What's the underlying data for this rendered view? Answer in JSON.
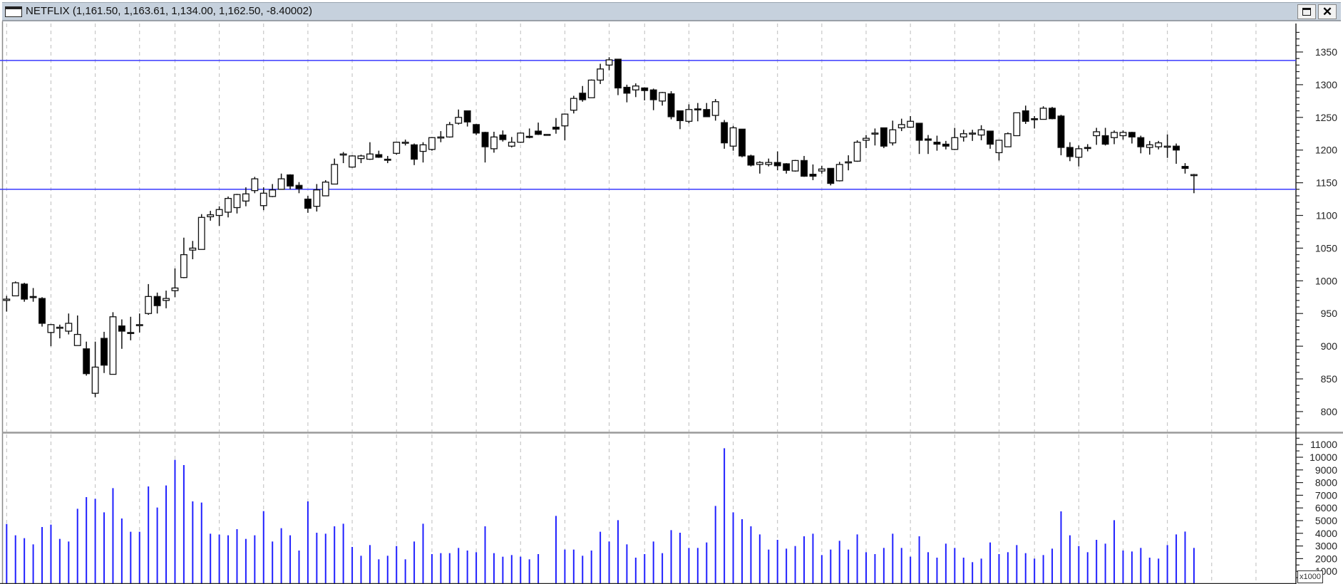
{
  "window": {
    "title": "NETFLIX (1,161.50, 1,163.61, 1,134.00, 1,162.50, -8.40002)",
    "maximize_icon": "maximize-icon",
    "close_icon": "close-icon",
    "close_label": "✕"
  },
  "colors": {
    "volume": "#2020ff",
    "horizontal_line": "#3a3aff",
    "candle_up_fill": "#ffffff",
    "candle_down_fill": "#000000",
    "grid": "#bdbdbd"
  },
  "chart_data": [
    {
      "type": "candlestick",
      "series_name": "NETFLIX",
      "ylim": [
        775,
        1385
      ],
      "yticks": [
        1350,
        1300,
        1250,
        1200,
        1150,
        1100,
        1050,
        1000,
        950,
        900,
        850,
        800
      ],
      "grid": "vertical dashed",
      "horizontal_lines": [
        1337,
        1140
      ],
      "ohlc": [
        [
          970,
          977,
          953,
          972
        ],
        [
          977,
          999,
          977,
          997
        ],
        [
          995,
          997,
          968,
          972
        ],
        [
          976,
          989,
          968,
          975
        ],
        [
          973,
          975,
          930,
          935
        ],
        [
          921,
          934,
          900,
          933
        ],
        [
          928,
          933,
          912,
          929
        ],
        [
          923,
          950,
          918,
          935
        ],
        [
          901,
          947,
          901,
          918
        ],
        [
          896,
          907,
          855,
          858
        ],
        [
          828,
          907,
          822,
          868
        ],
        [
          912,
          922,
          859,
          871
        ],
        [
          857,
          952,
          857,
          945
        ],
        [
          931,
          941,
          896,
          923
        ],
        [
          921,
          945,
          909,
          920
        ],
        [
          932,
          950,
          921,
          933
        ],
        [
          950,
          995,
          948,
          976
        ],
        [
          976,
          982,
          950,
          962
        ],
        [
          970,
          985,
          958,
          973
        ],
        [
          985,
          1019,
          975,
          989
        ],
        [
          1005,
          1066,
          1004,
          1040
        ],
        [
          1047,
          1061,
          1033,
          1050
        ],
        [
          1048,
          1102,
          1048,
          1097
        ],
        [
          1098,
          1107,
          1092,
          1101
        ],
        [
          1100,
          1114,
          1084,
          1109
        ],
        [
          1105,
          1129,
          1097,
          1126
        ],
        [
          1112,
          1133,
          1103,
          1132
        ],
        [
          1122,
          1143,
          1114,
          1133
        ],
        [
          1138,
          1159,
          1134,
          1156
        ],
        [
          1115,
          1143,
          1108,
          1134
        ],
        [
          1129,
          1148,
          1128,
          1139
        ],
        [
          1140,
          1164,
          1140,
          1156
        ],
        [
          1162,
          1163,
          1140,
          1145
        ],
        [
          1146,
          1151,
          1134,
          1141
        ],
        [
          1125,
          1130,
          1104,
          1111
        ],
        [
          1114,
          1148,
          1106,
          1139
        ],
        [
          1130,
          1154,
          1130,
          1151
        ],
        [
          1148,
          1187,
          1148,
          1178
        ],
        [
          1193,
          1197,
          1180,
          1194
        ],
        [
          1174,
          1192,
          1173,
          1191
        ],
        [
          1187,
          1193,
          1180,
          1191
        ],
        [
          1186,
          1212,
          1185,
          1194
        ],
        [
          1193,
          1199,
          1188,
          1189
        ],
        [
          1186,
          1191,
          1180,
          1185
        ],
        [
          1195,
          1213,
          1193,
          1212
        ],
        [
          1211,
          1216,
          1207,
          1212
        ],
        [
          1208,
          1210,
          1177,
          1186
        ],
        [
          1198,
          1212,
          1181,
          1208
        ],
        [
          1201,
          1220,
          1199,
          1219
        ],
        [
          1219,
          1229,
          1212,
          1220
        ],
        [
          1220,
          1243,
          1219,
          1239
        ],
        [
          1241,
          1262,
          1239,
          1250
        ],
        [
          1260,
          1260,
          1236,
          1243
        ],
        [
          1239,
          1240,
          1223,
          1226
        ],
        [
          1227,
          1228,
          1181,
          1205
        ],
        [
          1202,
          1228,
          1196,
          1220
        ],
        [
          1223,
          1230,
          1213,
          1216
        ],
        [
          1206,
          1220,
          1204,
          1212
        ],
        [
          1212,
          1227,
          1211,
          1226
        ],
        [
          1221,
          1233,
          1218,
          1220
        ],
        [
          1229,
          1242,
          1223,
          1224
        ],
        [
          1224,
          1224,
          1224,
          1224
        ],
        [
          1235,
          1249,
          1225,
          1232
        ],
        [
          1237,
          1256,
          1215,
          1255
        ],
        [
          1261,
          1283,
          1256,
          1279
        ],
        [
          1287,
          1298,
          1274,
          1277
        ],
        [
          1280,
          1308,
          1280,
          1307
        ],
        [
          1307,
          1332,
          1301,
          1324
        ],
        [
          1330,
          1342,
          1322,
          1338
        ],
        [
          1339,
          1339,
          1284,
          1295
        ],
        [
          1296,
          1300,
          1273,
          1287
        ],
        [
          1292,
          1302,
          1281,
          1298
        ],
        [
          1295,
          1296,
          1276,
          1291
        ],
        [
          1292,
          1294,
          1261,
          1277
        ],
        [
          1275,
          1289,
          1268,
          1288
        ],
        [
          1286,
          1290,
          1247,
          1251
        ],
        [
          1260,
          1260,
          1232,
          1245
        ],
        [
          1244,
          1270,
          1241,
          1262
        ],
        [
          1263,
          1272,
          1244,
          1262
        ],
        [
          1262,
          1272,
          1251,
          1251
        ],
        [
          1253,
          1278,
          1245,
          1274
        ],
        [
          1242,
          1246,
          1202,
          1211
        ],
        [
          1206,
          1237,
          1199,
          1234
        ],
        [
          1232,
          1232,
          1189,
          1191
        ],
        [
          1191,
          1193,
          1175,
          1177
        ],
        [
          1178,
          1183,
          1164,
          1181
        ],
        [
          1178,
          1187,
          1175,
          1181
        ],
        [
          1181,
          1198,
          1169,
          1176
        ],
        [
          1179,
          1180,
          1164,
          1169
        ],
        [
          1168,
          1185,
          1167,
          1184
        ],
        [
          1184,
          1191,
          1159,
          1160
        ],
        [
          1163,
          1178,
          1154,
          1160
        ],
        [
          1168,
          1176,
          1164,
          1171
        ],
        [
          1172,
          1172,
          1146,
          1149
        ],
        [
          1153,
          1182,
          1152,
          1178
        ],
        [
          1181,
          1192,
          1169,
          1182
        ],
        [
          1183,
          1215,
          1182,
          1212
        ],
        [
          1215,
          1223,
          1203,
          1218
        ],
        [
          1226,
          1233,
          1207,
          1226
        ],
        [
          1234,
          1234,
          1203,
          1206
        ],
        [
          1211,
          1245,
          1207,
          1231
        ],
        [
          1234,
          1248,
          1229,
          1239
        ],
        [
          1235,
          1252,
          1234,
          1244
        ],
        [
          1241,
          1241,
          1194,
          1215
        ],
        [
          1217,
          1223,
          1194,
          1215
        ],
        [
          1212,
          1222,
          1199,
          1209
        ],
        [
          1209,
          1214,
          1201,
          1206
        ],
        [
          1201,
          1234,
          1200,
          1219
        ],
        [
          1220,
          1231,
          1213,
          1225
        ],
        [
          1225,
          1231,
          1214,
          1226
        ],
        [
          1223,
          1238,
          1215,
          1231
        ],
        [
          1229,
          1229,
          1202,
          1209
        ],
        [
          1196,
          1215,
          1184,
          1215
        ],
        [
          1205,
          1227,
          1205,
          1225
        ],
        [
          1222,
          1257,
          1222,
          1257
        ],
        [
          1260,
          1268,
          1240,
          1244
        ],
        [
          1248,
          1252,
          1233,
          1247
        ],
        [
          1247,
          1267,
          1247,
          1264
        ],
        [
          1264,
          1266,
          1247,
          1248
        ],
        [
          1252,
          1254,
          1192,
          1204
        ],
        [
          1204,
          1212,
          1183,
          1190
        ],
        [
          1189,
          1207,
          1175,
          1202
        ],
        [
          1204,
          1209,
          1198,
          1203
        ],
        [
          1222,
          1234,
          1208,
          1228
        ],
        [
          1222,
          1234,
          1207,
          1209
        ],
        [
          1219,
          1230,
          1209,
          1227
        ],
        [
          1222,
          1230,
          1216,
          1227
        ],
        [
          1227,
          1228,
          1210,
          1220
        ],
        [
          1219,
          1222,
          1195,
          1205
        ],
        [
          1204,
          1214,
          1193,
          1208
        ],
        [
          1205,
          1214,
          1201,
          1211
        ],
        [
          1206,
          1224,
          1188,
          1206
        ],
        [
          1206,
          1210,
          1179,
          1200
        ],
        [
          1175,
          1180,
          1164,
          1172
        ],
        [
          1161.5,
          1163.61,
          1134,
          1162.5
        ]
      ]
    },
    {
      "type": "bar",
      "ylim": [
        0,
        11500
      ],
      "yticks": [
        11000,
        10000,
        9000,
        8000,
        7000,
        6000,
        5000,
        4000,
        3000,
        2000,
        1000
      ],
      "unit_label": "x1000",
      "values": [
        4736,
        3840,
        3615,
        3127,
        4494,
        4681,
        3558,
        3352,
        5936,
        6854,
        6723,
        5655,
        7566,
        5169,
        4120,
        4120,
        7697,
        6030,
        7772,
        9794,
        9382,
        6517,
        6423,
        3970,
        3895,
        3839,
        4326,
        3558,
        3839,
        5749,
        3352,
        4401,
        3839,
        2640,
        6517,
        4045,
        3970,
        4551,
        4757,
        2921,
        2228,
        3071,
        1948,
        2228,
        2996,
        1948,
        3352,
        4757,
        2360,
        2434,
        2434,
        2846,
        2640,
        2509,
        4551,
        2434,
        2153,
        2284,
        2153,
        1948,
        2360,
        0,
        5374,
        2716,
        2716,
        2228,
        2640,
        4120,
        3352,
        5037,
        3127,
        2079,
        2360,
        3352,
        2434,
        4251,
        4045,
        2846,
        2846,
        3277,
        6161,
        10711,
        5655,
        5112,
        4551,
        3914,
        2716,
        3483,
        2790,
        2996,
        3764,
        3970,
        2284,
        2716,
        3408,
        2716,
        3914,
        2509,
        2360,
        2846,
        3970,
        2846,
        2153,
        3764,
        2509,
        2079,
        3183,
        2846,
        2079,
        1723,
        2004,
        3277,
        2360,
        2509,
        3071,
        2434,
        2004,
        2284,
        2790,
        5730,
        3839,
        2996,
        2509,
        3483,
        3183,
        5037,
        2640,
        2565,
        2846,
        2079,
        2004,
        3071,
        3914,
        4139,
        2846
      ]
    }
  ]
}
